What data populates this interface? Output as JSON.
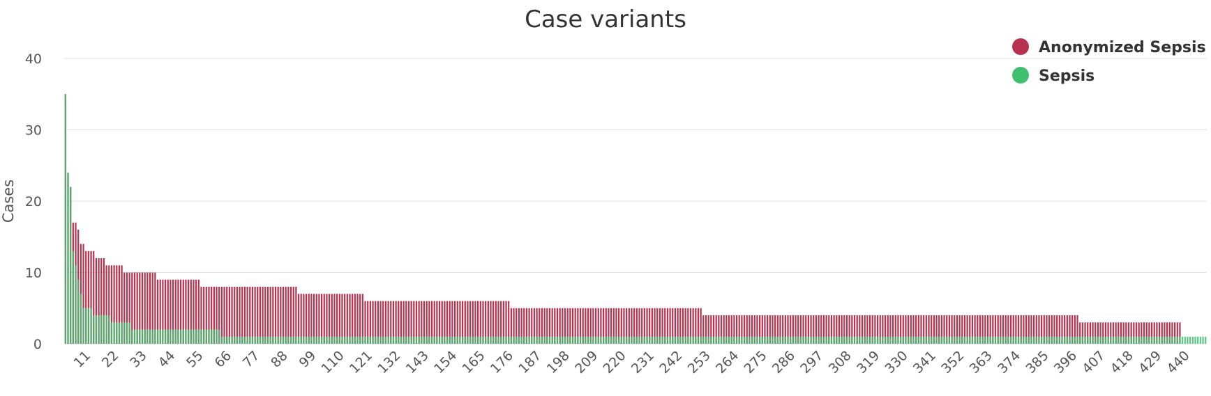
{
  "chart_data": {
    "type": "bar",
    "title": "Case variants",
    "xlabel": "",
    "ylabel": "Cases",
    "ylim": [
      0,
      40
    ],
    "yticks": [
      0,
      10,
      20,
      30,
      40
    ],
    "xlim": [
      1,
      446
    ],
    "xticks": [
      11,
      22,
      33,
      44,
      55,
      66,
      77,
      88,
      99,
      110,
      121,
      132,
      143,
      154,
      165,
      176,
      187,
      198,
      209,
      220,
      231,
      242,
      253,
      264,
      275,
      286,
      297,
      308,
      319,
      330,
      341,
      352,
      363,
      374,
      385,
      396,
      407,
      418,
      429,
      440
    ],
    "grid": true,
    "legend_position": "top-right",
    "series": [
      {
        "name": "Anonymized Sepsis",
        "color": "#b8324f",
        "runs": [
          [
            35,
            1
          ],
          [
            24,
            1
          ],
          [
            22,
            1
          ],
          [
            17,
            2
          ],
          [
            16,
            1
          ],
          [
            14,
            2
          ],
          [
            13,
            4
          ],
          [
            12,
            4
          ],
          [
            11,
            7
          ],
          [
            10,
            13
          ],
          [
            9,
            17
          ],
          [
            8,
            38
          ],
          [
            7,
            26
          ],
          [
            6,
            57
          ],
          [
            5,
            75
          ],
          [
            4,
            147
          ],
          [
            3,
            40
          ]
        ]
      },
      {
        "name": "Sepsis",
        "color": "#3fbf70",
        "runs": [
          [
            35,
            1
          ],
          [
            24,
            1
          ],
          [
            22,
            1
          ],
          [
            13,
            1
          ],
          [
            11,
            1
          ],
          [
            9,
            1
          ],
          [
            7,
            1
          ],
          [
            5,
            4
          ],
          [
            4,
            7
          ],
          [
            3,
            8
          ],
          [
            2,
            35
          ],
          [
            1,
            385
          ]
        ]
      }
    ]
  }
}
